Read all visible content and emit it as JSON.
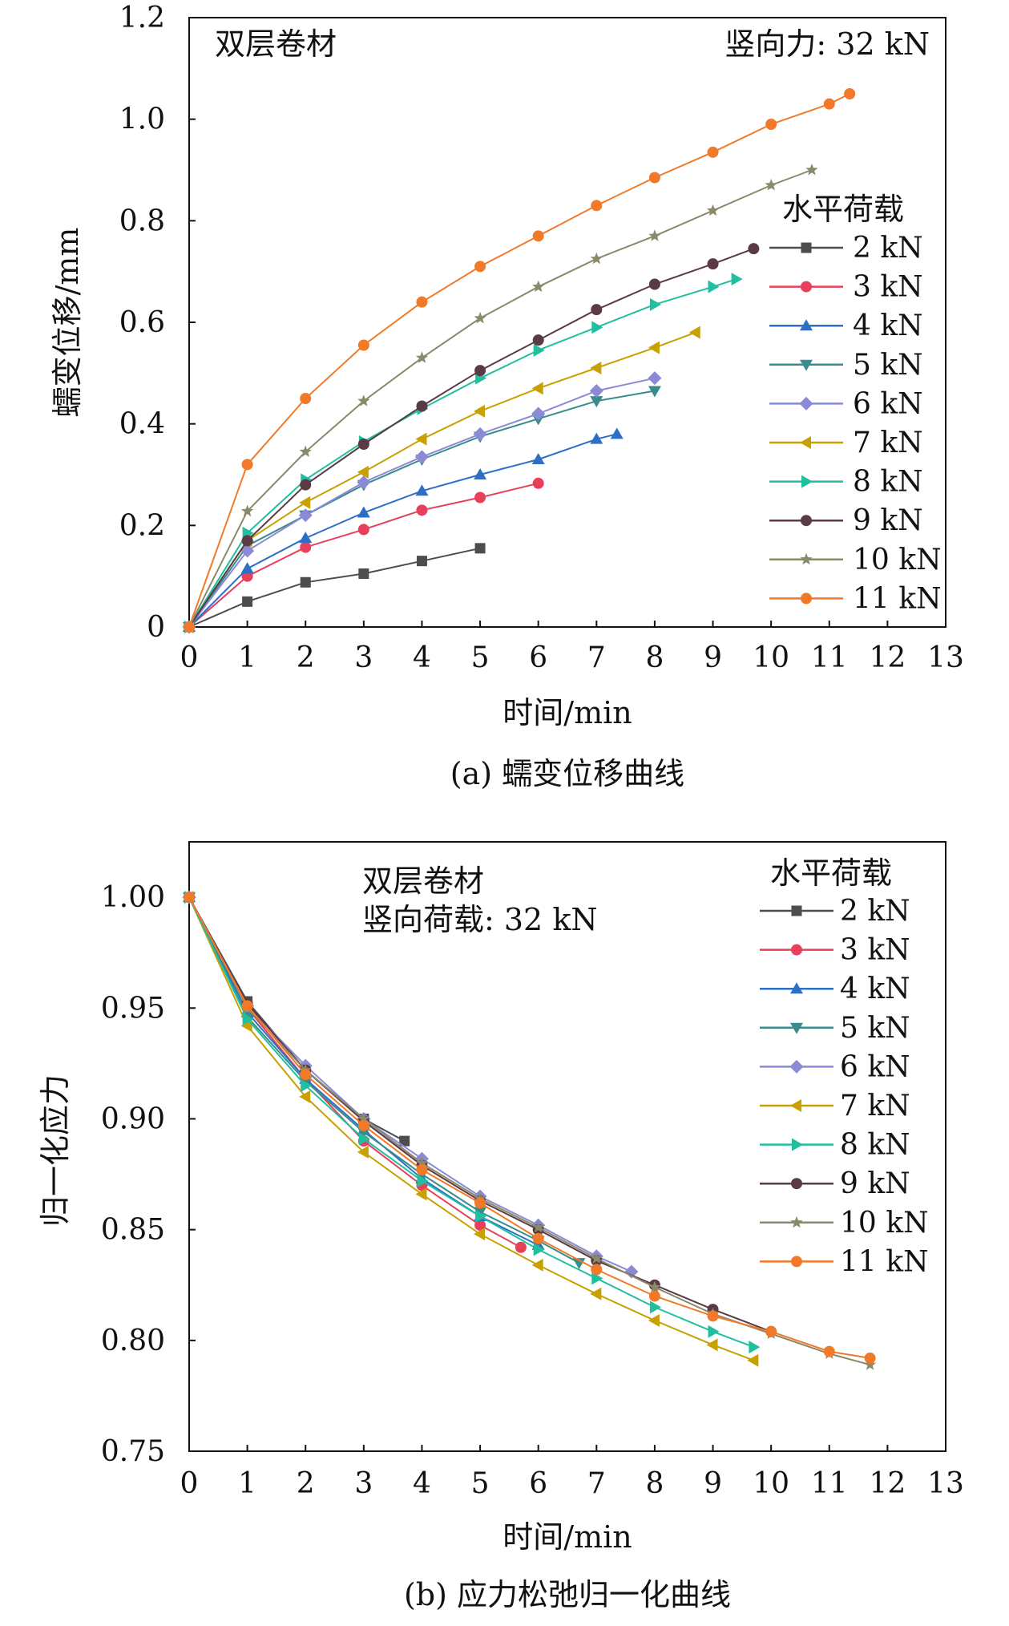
{
  "chart_data": [
    {
      "type": "line",
      "caption": "(a) 蠕变位移曲线",
      "xlabel": "时间/min",
      "ylabel": "蠕变位移/mm",
      "annotations": {
        "material": "双层卷材",
        "force": "竖向力: 32 kN"
      },
      "legend_title": "水平荷载",
      "xlim": [
        0,
        13
      ],
      "ylim": [
        0,
        1.2
      ],
      "x_ticks": [
        "0",
        "1",
        "2",
        "3",
        "4",
        "5",
        "6",
        "7",
        "8",
        "9",
        "10",
        "11",
        "12",
        "13"
      ],
      "y_ticks": [
        {
          "value": 0,
          "label": "0"
        },
        {
          "value": 0.2,
          "label": "0.2"
        },
        {
          "value": 0.4,
          "label": "0.4"
        },
        {
          "value": 0.6,
          "label": "0.6"
        },
        {
          "value": 0.8,
          "label": "0.8"
        },
        {
          "value": 1.0,
          "label": "1.0"
        },
        {
          "value": 1.2,
          "label": "1.2"
        }
      ],
      "series": [
        {
          "name": "2 kN",
          "color": "#4d4d4d",
          "marker": "square",
          "x": [
            0,
            1,
            2,
            3,
            4,
            5
          ],
          "y": [
            0,
            0.05,
            0.088,
            0.105,
            0.13,
            0.155
          ]
        },
        {
          "name": "3 kN",
          "color": "#e8405a",
          "marker": "circle",
          "x": [
            0,
            1,
            2,
            3,
            4,
            5,
            6
          ],
          "y": [
            0,
            0.1,
            0.157,
            0.192,
            0.23,
            0.255,
            0.283
          ]
        },
        {
          "name": "4 kN",
          "color": "#2e6fc6",
          "marker": "triangle-up",
          "x": [
            0,
            1,
            2,
            3,
            4,
            5,
            6,
            7,
            7.35
          ],
          "y": [
            0,
            0.115,
            0.175,
            0.225,
            0.268,
            0.3,
            0.33,
            0.37,
            0.38
          ]
        },
        {
          "name": "5 kN",
          "color": "#3a8c8c",
          "marker": "triangle-down",
          "x": [
            0,
            1,
            2,
            3,
            4,
            5,
            6,
            7,
            8
          ],
          "y": [
            0,
            0.16,
            0.22,
            0.28,
            0.33,
            0.375,
            0.41,
            0.445,
            0.465
          ]
        },
        {
          "name": "6 kN",
          "color": "#8a8ad6",
          "marker": "diamond",
          "x": [
            0,
            1,
            2,
            3,
            4,
            5,
            6,
            7,
            8
          ],
          "y": [
            0,
            0.15,
            0.22,
            0.285,
            0.335,
            0.38,
            0.42,
            0.465,
            0.49
          ]
        },
        {
          "name": "7 kN",
          "color": "#c8a000",
          "marker": "triangle-left",
          "x": [
            0,
            1,
            2,
            3,
            4,
            5,
            6,
            7,
            8,
            8.7
          ],
          "y": [
            0,
            0.17,
            0.245,
            0.305,
            0.37,
            0.425,
            0.47,
            0.51,
            0.55,
            0.58
          ]
        },
        {
          "name": "8 kN",
          "color": "#1fbfa0",
          "marker": "triangle-right",
          "x": [
            0,
            1,
            2,
            3,
            4,
            5,
            6,
            7,
            8,
            9,
            9.4
          ],
          "y": [
            0,
            0.185,
            0.29,
            0.365,
            0.43,
            0.49,
            0.545,
            0.59,
            0.635,
            0.67,
            0.685
          ]
        },
        {
          "name": "9 kN",
          "color": "#5a3a44",
          "marker": "circle",
          "x": [
            0,
            1,
            2,
            3,
            4,
            5,
            6,
            7,
            8,
            9,
            9.7
          ],
          "y": [
            0,
            0.17,
            0.28,
            0.36,
            0.435,
            0.505,
            0.565,
            0.625,
            0.675,
            0.715,
            0.745
          ]
        },
        {
          "name": "10 kN",
          "color": "#8a8a6a",
          "marker": "star",
          "x": [
            0,
            1,
            2,
            3,
            4,
            5,
            6,
            7,
            8,
            9,
            10,
            10.7
          ],
          "y": [
            0,
            0.228,
            0.345,
            0.445,
            0.53,
            0.608,
            0.67,
            0.725,
            0.77,
            0.82,
            0.87,
            0.9
          ]
        },
        {
          "name": "11 kN",
          "color": "#f07a2a",
          "marker": "circle",
          "x": [
            0,
            1,
            2,
            3,
            4,
            5,
            6,
            7,
            8,
            9,
            10,
            11,
            11.35
          ],
          "y": [
            0,
            0.32,
            0.45,
            0.555,
            0.64,
            0.71,
            0.77,
            0.83,
            0.885,
            0.935,
            0.99,
            1.03,
            1.05
          ]
        }
      ]
    },
    {
      "type": "line",
      "caption": "(b) 应力松弛归一化曲线",
      "xlabel": "时间/min",
      "ylabel": "归一化应力",
      "annotations": {
        "material": "双层卷材",
        "force": "竖向荷载: 32 kN"
      },
      "legend_title": "水平荷载",
      "xlim": [
        0,
        13
      ],
      "ylim": [
        0.75,
        1.025
      ],
      "x_ticks": [
        "0",
        "1",
        "2",
        "3",
        "4",
        "5",
        "6",
        "7",
        "8",
        "9",
        "10",
        "11",
        "12",
        "13"
      ],
      "y_ticks": [
        {
          "value": 0.75,
          "label": "0.75"
        },
        {
          "value": 0.8,
          "label": "0.80"
        },
        {
          "value": 0.85,
          "label": "0.85"
        },
        {
          "value": 0.9,
          "label": "0.90"
        },
        {
          "value": 0.95,
          "label": "0.95"
        },
        {
          "value": 1.0,
          "label": "1.00"
        }
      ],
      "series": [
        {
          "name": "2 kN",
          "color": "#4d4d4d",
          "marker": "square",
          "x": [
            0,
            1,
            2,
            3,
            3.7
          ],
          "y": [
            1.0,
            0.953,
            0.922,
            0.9,
            0.89
          ]
        },
        {
          "name": "3 kN",
          "color": "#e8405a",
          "marker": "circle",
          "x": [
            0,
            1,
            2,
            3,
            4,
            5,
            5.7
          ],
          "y": [
            1.0,
            0.95,
            0.918,
            0.89,
            0.87,
            0.852,
            0.842
          ]
        },
        {
          "name": "4 kN",
          "color": "#2e6fc6",
          "marker": "triangle-up",
          "x": [
            0,
            1,
            2,
            3,
            4,
            5,
            6
          ],
          "y": [
            1.0,
            0.948,
            0.918,
            0.895,
            0.873,
            0.856,
            0.843
          ]
        },
        {
          "name": "5 kN",
          "color": "#3a8c8c",
          "marker": "triangle-down",
          "x": [
            0,
            1,
            2,
            3,
            4,
            5,
            6,
            6.7
          ],
          "y": [
            1.0,
            0.946,
            0.917,
            0.894,
            0.875,
            0.858,
            0.845,
            0.835
          ]
        },
        {
          "name": "6 kN",
          "color": "#8a8ad6",
          "marker": "diamond",
          "x": [
            0,
            1,
            2,
            3,
            4,
            5,
            6,
            7,
            7.6
          ],
          "y": [
            1.0,
            0.951,
            0.924,
            0.9,
            0.882,
            0.865,
            0.852,
            0.838,
            0.831
          ]
        },
        {
          "name": "7 kN",
          "color": "#c8a000",
          "marker": "triangle-left",
          "x": [
            0,
            1,
            2,
            3,
            4,
            5,
            6,
            7,
            8,
            9,
            9.7
          ],
          "y": [
            1.0,
            0.942,
            0.91,
            0.885,
            0.866,
            0.848,
            0.834,
            0.821,
            0.809,
            0.798,
            0.791
          ]
        },
        {
          "name": "8 kN",
          "color": "#1fbfa0",
          "marker": "triangle-right",
          "x": [
            0,
            1,
            2,
            3,
            4,
            5,
            6,
            7,
            8,
            9,
            9.7
          ],
          "y": [
            1.0,
            0.945,
            0.915,
            0.891,
            0.872,
            0.856,
            0.841,
            0.828,
            0.815,
            0.804,
            0.797
          ]
        },
        {
          "name": "9 kN",
          "color": "#5a3a44",
          "marker": "circle",
          "x": [
            0,
            1,
            2,
            3,
            4,
            5,
            6,
            7,
            8,
            9,
            10
          ],
          "y": [
            1.0,
            0.952,
            0.922,
            0.899,
            0.879,
            0.863,
            0.85,
            0.836,
            0.825,
            0.814,
            0.804
          ]
        },
        {
          "name": "10 kN",
          "color": "#8a8a6a",
          "marker": "star",
          "x": [
            0,
            1,
            2,
            3,
            4,
            5,
            6,
            7,
            8,
            9,
            10,
            11,
            11.7
          ],
          "y": [
            1.0,
            0.95,
            0.922,
            0.9,
            0.88,
            0.864,
            0.851,
            0.837,
            0.824,
            0.812,
            0.803,
            0.794,
            0.789
          ]
        },
        {
          "name": "11 kN",
          "color": "#f07a2a",
          "marker": "circle",
          "x": [
            0,
            1,
            2,
            3,
            4,
            5,
            6,
            7,
            8,
            9,
            10,
            11,
            11.7
          ],
          "y": [
            1.0,
            0.951,
            0.92,
            0.897,
            0.877,
            0.862,
            0.846,
            0.832,
            0.82,
            0.811,
            0.804,
            0.795,
            0.792
          ]
        }
      ]
    }
  ]
}
